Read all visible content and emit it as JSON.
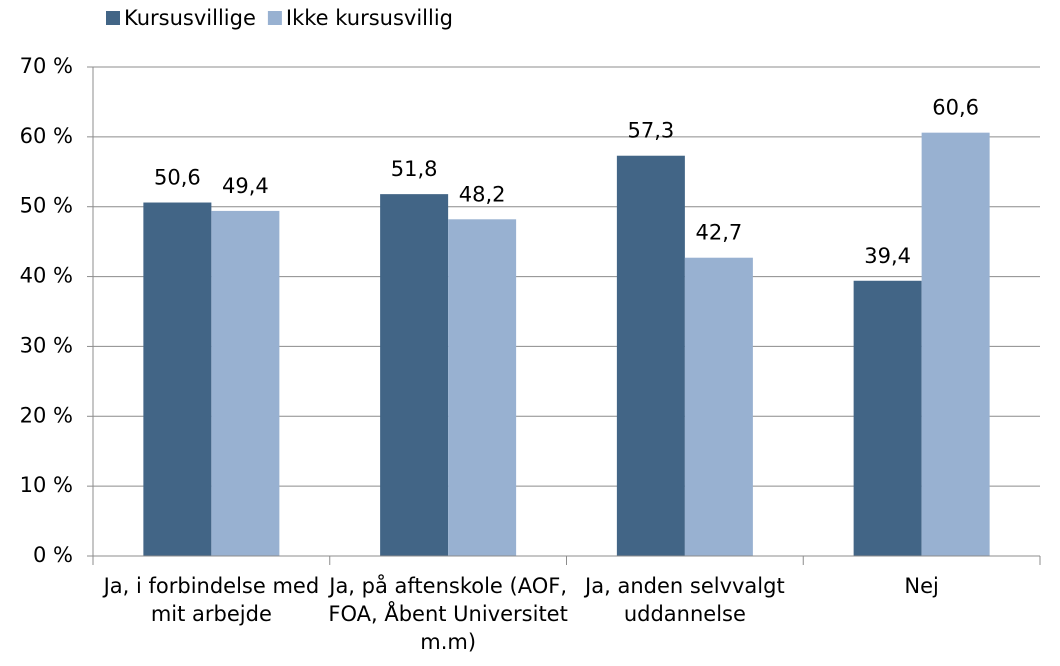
{
  "chart_data": {
    "type": "bar",
    "categories": [
      "Ja, i forbindelse med mit arbejde",
      "Ja, på aftenskole (AOF, FOA, Åbent Universitet m.m)",
      "Ja, anden selvvalgt uddannelse",
      "Nej"
    ],
    "series": [
      {
        "name": "Kursusvillige",
        "color": "#426586",
        "values": [
          50.6,
          51.8,
          57.3,
          39.4
        ],
        "value_labels": [
          "50,6",
          "51,8",
          "57,3",
          "39,4"
        ]
      },
      {
        "name": "Ikke kursusvillig",
        "color": "#98b1d1",
        "values": [
          49.4,
          48.2,
          42.7,
          60.6
        ],
        "value_labels": [
          "49,4",
          "48,2",
          "42,7",
          "60,6"
        ]
      }
    ],
    "ylim": [
      0,
      70
    ],
    "yticks": [
      {
        "value": 0,
        "label": "0 %"
      },
      {
        "value": 10,
        "label": "10 %"
      },
      {
        "value": 20,
        "label": "20 %"
      },
      {
        "value": 30,
        "label": "30 %"
      },
      {
        "value": 40,
        "label": "40 %"
      },
      {
        "value": 50,
        "label": "50 %"
      },
      {
        "value": 60,
        "label": "60 %"
      },
      {
        "value": 70,
        "label": "70 %"
      }
    ],
    "grid": true,
    "legend": "top"
  }
}
